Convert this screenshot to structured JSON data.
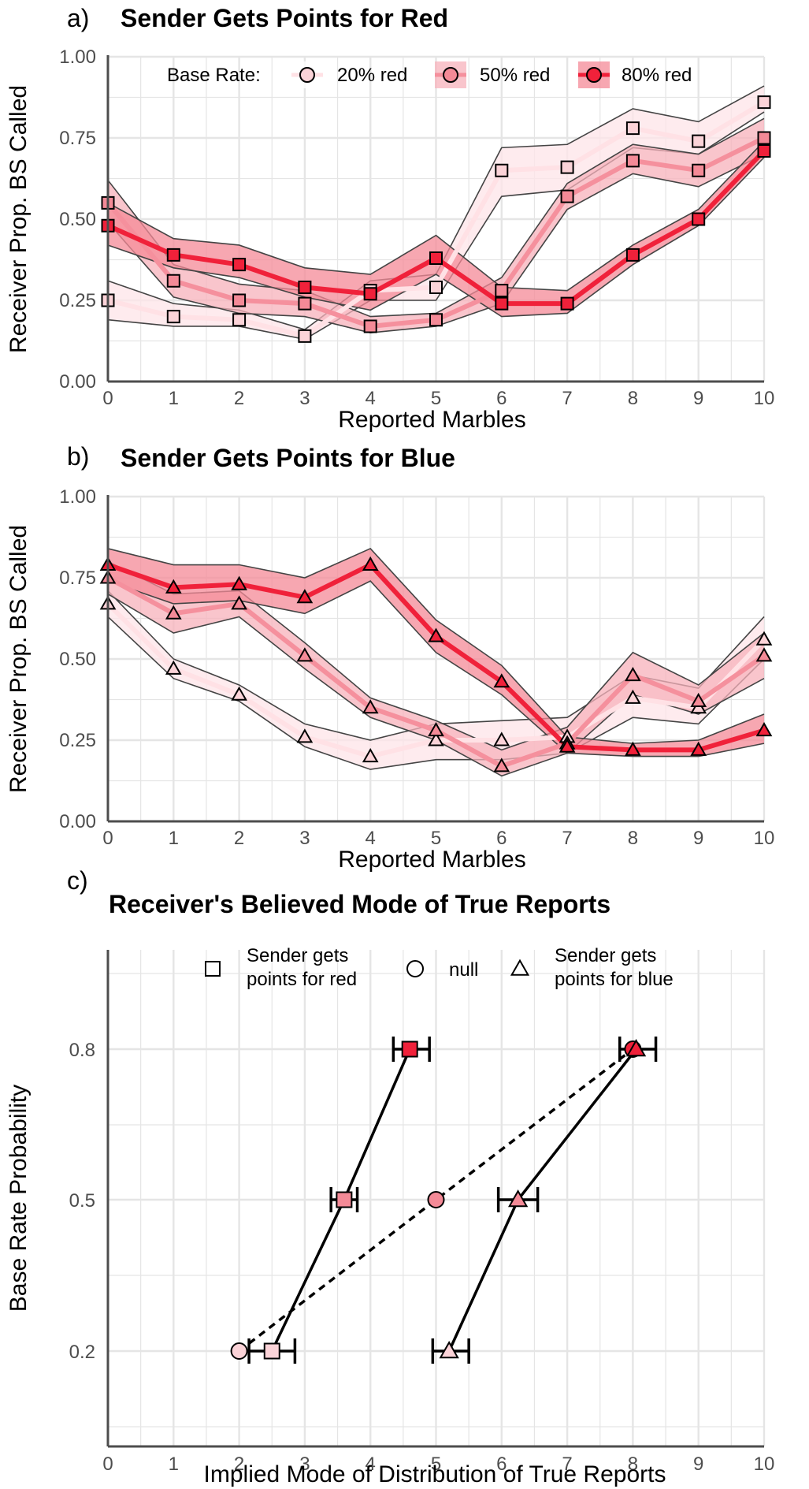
{
  "chart_data": [
    {
      "panel": "a)",
      "type": "line",
      "title": "Sender Gets Points for Red",
      "xlabel": "Reported Marbles",
      "ylabel": "Receiver Prop. BS Called",
      "xlim": [
        0,
        10
      ],
      "ylim": [
        0,
        1
      ],
      "xticks": [
        "0",
        "1",
        "2",
        "3",
        "4",
        "5",
        "6",
        "7",
        "8",
        "9",
        "10"
      ],
      "yticks": [
        "0.00",
        "0.25",
        "0.50",
        "0.75",
        "1.00"
      ],
      "marker": "square",
      "grid": true,
      "legend": {
        "title": "Base Rate:",
        "placement": "top"
      },
      "x": [
        0,
        1,
        2,
        3,
        4,
        5,
        6,
        7,
        8,
        9,
        10
      ],
      "series": [
        {
          "name": "20% red",
          "color": "#fbd3d8",
          "lineColor": "#ffe1e5",
          "bandColor": "#fde4e8",
          "values": [
            0.25,
            0.2,
            0.19,
            0.14,
            0.28,
            0.29,
            0.65,
            0.66,
            0.78,
            0.74,
            0.86
          ],
          "lower": [
            0.19,
            0.17,
            0.17,
            0.13,
            0.25,
            0.25,
            0.57,
            0.59,
            0.72,
            0.7,
            0.83
          ],
          "upper": [
            0.31,
            0.24,
            0.22,
            0.16,
            0.31,
            0.33,
            0.72,
            0.73,
            0.84,
            0.8,
            0.91
          ]
        },
        {
          "name": "50% red",
          "color": "#f48a97",
          "lineColor": "#f5909d",
          "bandColor": "#f7b2bb",
          "values": [
            0.55,
            0.31,
            0.25,
            0.24,
            0.17,
            0.19,
            0.28,
            0.57,
            0.68,
            0.65,
            0.75
          ],
          "lower": [
            0.49,
            0.26,
            0.21,
            0.2,
            0.15,
            0.17,
            0.24,
            0.53,
            0.64,
            0.6,
            0.7
          ],
          "upper": [
            0.62,
            0.36,
            0.3,
            0.28,
            0.2,
            0.21,
            0.32,
            0.61,
            0.73,
            0.7,
            0.81
          ]
        },
        {
          "name": "80% red",
          "color": "#f0213a",
          "lineColor": "#f0213a",
          "bandColor": "#f48a97",
          "values": [
            0.48,
            0.39,
            0.36,
            0.29,
            0.27,
            0.38,
            0.24,
            0.24,
            0.39,
            0.5,
            0.71
          ],
          "lower": [
            0.42,
            0.35,
            0.32,
            0.26,
            0.22,
            0.33,
            0.2,
            0.21,
            0.36,
            0.48,
            0.69
          ],
          "upper": [
            0.55,
            0.44,
            0.42,
            0.35,
            0.33,
            0.45,
            0.29,
            0.28,
            0.42,
            0.53,
            0.74
          ]
        }
      ]
    },
    {
      "panel": "b)",
      "type": "line",
      "title": "Sender Gets Points for Blue",
      "xlabel": "Reported Marbles",
      "ylabel": "Receiver Prop. BS Called",
      "xlim": [
        0,
        10
      ],
      "ylim": [
        0,
        1
      ],
      "xticks": [
        "0",
        "1",
        "2",
        "3",
        "4",
        "5",
        "6",
        "7",
        "8",
        "9",
        "10"
      ],
      "yticks": [
        "0.00",
        "0.25",
        "0.50",
        "0.75",
        "1.00"
      ],
      "marker": "triangle",
      "grid": true,
      "x": [
        0,
        1,
        2,
        3,
        4,
        5,
        6,
        7,
        8,
        9,
        10
      ],
      "series": [
        {
          "name": "20% red",
          "color": "#fbd3d8",
          "lineColor": "#ffe1e5",
          "bandColor": "#fde4e8",
          "values": [
            0.67,
            0.47,
            0.39,
            0.26,
            0.2,
            0.25,
            0.25,
            0.26,
            0.38,
            0.35,
            0.56
          ],
          "lower": [
            0.63,
            0.44,
            0.37,
            0.23,
            0.16,
            0.19,
            0.19,
            0.21,
            0.32,
            0.3,
            0.5
          ],
          "upper": [
            0.71,
            0.5,
            0.42,
            0.3,
            0.25,
            0.3,
            0.31,
            0.32,
            0.45,
            0.41,
            0.63
          ]
        },
        {
          "name": "50% red",
          "color": "#f48a97",
          "lineColor": "#f5909d",
          "bandColor": "#f7b2bb",
          "values": [
            0.75,
            0.64,
            0.67,
            0.51,
            0.35,
            0.28,
            0.17,
            0.24,
            0.45,
            0.37,
            0.51
          ],
          "lower": [
            0.7,
            0.58,
            0.63,
            0.47,
            0.32,
            0.25,
            0.14,
            0.21,
            0.39,
            0.33,
            0.44
          ],
          "upper": [
            0.8,
            0.7,
            0.71,
            0.55,
            0.38,
            0.31,
            0.22,
            0.29,
            0.52,
            0.42,
            0.58
          ]
        },
        {
          "name": "80% red",
          "color": "#f0213a",
          "lineColor": "#f0213a",
          "bandColor": "#f48a97",
          "values": [
            0.79,
            0.72,
            0.73,
            0.69,
            0.79,
            0.57,
            0.43,
            0.23,
            0.22,
            0.22,
            0.28
          ],
          "lower": [
            0.74,
            0.67,
            0.68,
            0.64,
            0.74,
            0.52,
            0.39,
            0.21,
            0.2,
            0.2,
            0.24
          ],
          "upper": [
            0.84,
            0.79,
            0.79,
            0.75,
            0.84,
            0.62,
            0.48,
            0.26,
            0.24,
            0.25,
            0.33
          ]
        }
      ]
    },
    {
      "panel": "c)",
      "type": "scatter",
      "title": "Receiver's Believed Mode of True Reports",
      "xlabel": "Implied Mode of Distribution of True Reports",
      "ylabel": "Base Rate Probability",
      "xlim": [
        0,
        10
      ],
      "xticks": [
        "0",
        "1",
        "2",
        "3",
        "4",
        "5",
        "6",
        "7",
        "8",
        "9",
        "10"
      ],
      "yticks": [
        "0.2",
        "0.5",
        "0.8"
      ],
      "grid": true,
      "legend": {
        "placement": "top"
      },
      "series": [
        {
          "name": "Sender gets\npoints for red",
          "marker": "square",
          "line": "solid",
          "points": [
            {
              "y": 0.2,
              "x": 2.5,
              "xmin": 2.15,
              "xmax": 2.85,
              "color": "#fbd3d8"
            },
            {
              "y": 0.5,
              "x": 3.6,
              "xmin": 3.4,
              "xmax": 3.8,
              "color": "#f48a97"
            },
            {
              "y": 0.8,
              "x": 4.6,
              "xmin": 4.35,
              "xmax": 4.9,
              "color": "#f0213a"
            }
          ]
        },
        {
          "name": "null",
          "marker": "circle",
          "line": "dashed",
          "points": [
            {
              "y": 0.2,
              "x": 2.0,
              "color": "#fbd3d8"
            },
            {
              "y": 0.5,
              "x": 5.0,
              "color": "#f48a97"
            },
            {
              "y": 0.8,
              "x": 8.0,
              "color": "#f0213a"
            }
          ]
        },
        {
          "name": "Sender gets\npoints for blue",
          "marker": "triangle",
          "line": "solid",
          "points": [
            {
              "y": 0.2,
              "x": 5.2,
              "xmin": 4.95,
              "xmax": 5.5,
              "color": "#fbd3d8"
            },
            {
              "y": 0.5,
              "x": 6.25,
              "xmin": 5.95,
              "xmax": 6.55,
              "color": "#f48a97"
            },
            {
              "y": 0.8,
              "x": 8.05,
              "xmin": 7.8,
              "xmax": 8.35,
              "color": "#f0213a"
            }
          ]
        }
      ]
    }
  ]
}
